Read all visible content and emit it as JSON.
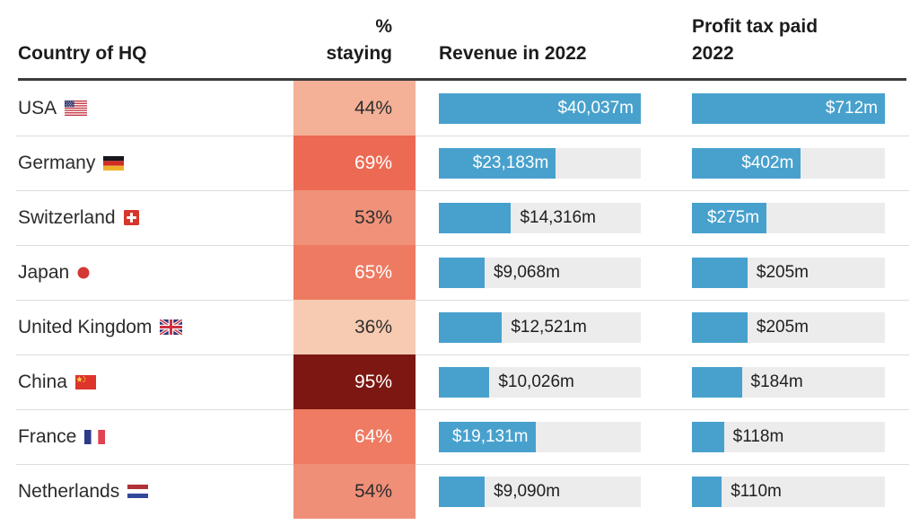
{
  "header": {
    "country": "Country of HQ",
    "staying_line1": "%",
    "staying_line2": "staying",
    "revenue": "Revenue in 2022",
    "profit_line1": "Profit tax paid",
    "profit_line2": "2022"
  },
  "colors": {
    "bar_blue": "#48a1cd",
    "track_gray": "#ececec",
    "header_rule": "#3b3b3b",
    "row_separator": "#dcdcdc",
    "dark_text": "#2e2e2e",
    "light_text": "#ffffff",
    "heat_min": "#f7cbb1",
    "heat_max": "#7d1711"
  },
  "rows": [
    {
      "country": "USA",
      "flag": "us-flag",
      "staying": {
        "label": "44%",
        "value": 44,
        "bg": "#f4b197",
        "text": "#2e2e2e"
      },
      "revenue": {
        "label": "$40,037m",
        "value": 40037,
        "inside": true
      },
      "profit": {
        "label": "$712m",
        "value": 712,
        "inside": true
      }
    },
    {
      "country": "Germany",
      "flag": "de-flag",
      "staying": {
        "label": "69%",
        "value": 69,
        "bg": "#ec6a53",
        "text": "#ffffff"
      },
      "revenue": {
        "label": "$23,183m",
        "value": 23183,
        "inside": true
      },
      "profit": {
        "label": "$402m",
        "value": 402,
        "inside": true
      }
    },
    {
      "country": "Switzerland",
      "flag": "ch-flag",
      "staying": {
        "label": "53%",
        "value": 53,
        "bg": "#f09279",
        "text": "#2e2e2e"
      },
      "revenue": {
        "label": "$14,316m",
        "value": 14316,
        "inside": false
      },
      "profit": {
        "label": "$275m",
        "value": 275,
        "inside": true
      }
    },
    {
      "country": "Japan",
      "flag": "jp-flag",
      "staying": {
        "label": "65%",
        "value": 65,
        "bg": "#ee7a61",
        "text": "#ffffff"
      },
      "revenue": {
        "label": "$9,068m",
        "value": 9068,
        "inside": false
      },
      "profit": {
        "label": "$205m",
        "value": 205,
        "inside": false
      }
    },
    {
      "country": "United Kingdom",
      "flag": "uk-flag",
      "staying": {
        "label": "36%",
        "value": 36,
        "bg": "#f7cbb1",
        "text": "#2e2e2e"
      },
      "revenue": {
        "label": "$12,521m",
        "value": 12521,
        "inside": false
      },
      "profit": {
        "label": "$205m",
        "value": 205,
        "inside": false
      }
    },
    {
      "country": "China",
      "flag": "cn-flag",
      "staying": {
        "label": "95%",
        "value": 95,
        "bg": "#7d1711",
        "text": "#ffffff"
      },
      "revenue": {
        "label": "$10,026m",
        "value": 10026,
        "inside": false
      },
      "profit": {
        "label": "$184m",
        "value": 184,
        "inside": false
      }
    },
    {
      "country": "France",
      "flag": "fr-flag",
      "staying": {
        "label": "64%",
        "value": 64,
        "bg": "#ee7b62",
        "text": "#ffffff"
      },
      "revenue": {
        "label": "$19,131m",
        "value": 19131,
        "inside": true
      },
      "profit": {
        "label": "$118m",
        "value": 118,
        "inside": false
      }
    },
    {
      "country": "Netherlands",
      "flag": "nl-flag",
      "staying": {
        "label": "54%",
        "value": 54,
        "bg": "#f08f78",
        "text": "#2e2e2e"
      },
      "revenue": {
        "label": "$9,090m",
        "value": 9090,
        "inside": false
      },
      "profit": {
        "label": "$110m",
        "value": 110,
        "inside": false
      }
    }
  ],
  "chart_data": {
    "type": "table",
    "columns": [
      "Country of HQ",
      "% staying",
      "Revenue in 2022",
      "Profit tax paid 2022"
    ],
    "categories": [
      "USA",
      "Germany",
      "Switzerland",
      "Japan",
      "United Kingdom",
      "China",
      "France",
      "Netherlands"
    ],
    "series": [
      {
        "name": "% staying",
        "values": [
          44,
          69,
          53,
          65,
          36,
          95,
          64,
          54
        ],
        "unit": "%",
        "render": "heatmap-cell"
      },
      {
        "name": "Revenue in 2022",
        "values": [
          40037,
          23183,
          14316,
          9068,
          12521,
          10026,
          19131,
          9090
        ],
        "unit": "$m",
        "render": "bar",
        "max": 40037
      },
      {
        "name": "Profit tax paid 2022",
        "values": [
          712,
          402,
          275,
          205,
          205,
          184,
          118,
          110
        ],
        "unit": "$m",
        "render": "bar",
        "max": 712
      }
    ],
    "revenue_max": 40037,
    "profit_max": 712,
    "legend": "none",
    "grid": "off"
  }
}
